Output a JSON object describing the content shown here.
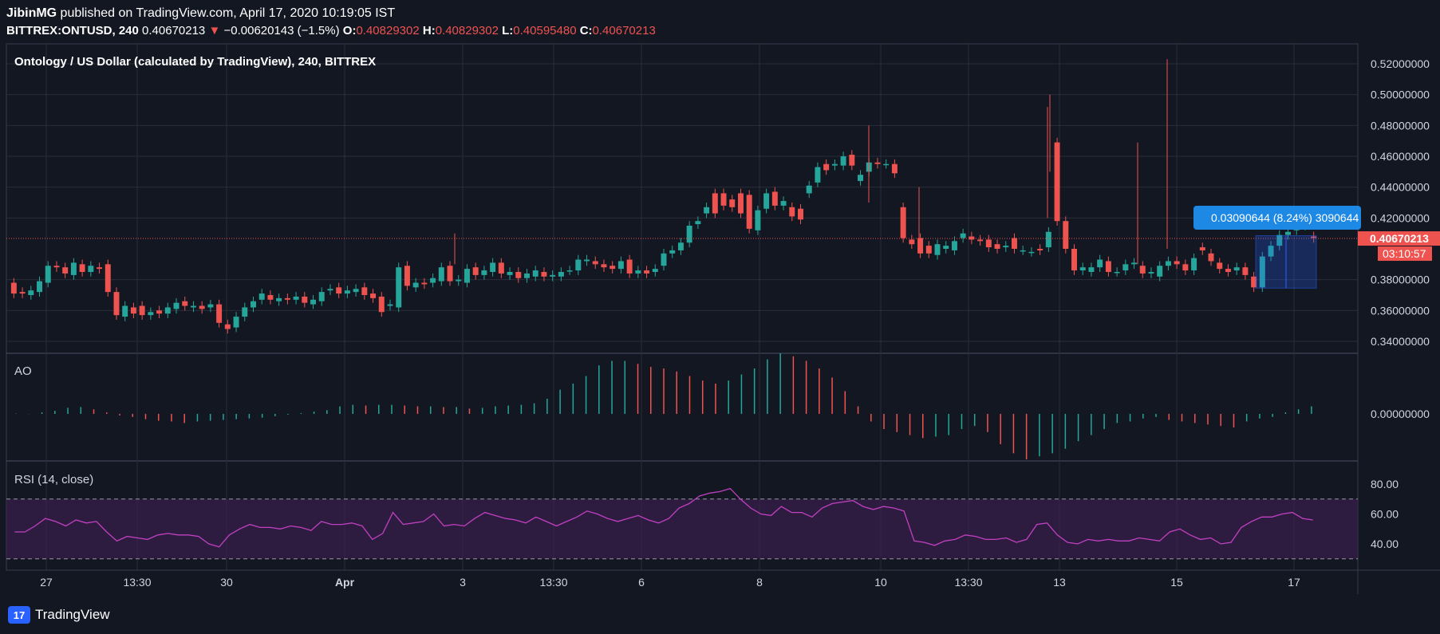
{
  "header": {
    "publisher": "JibinMG",
    "published_text": " published on TradingView.com, April 17, 2020 10:19:05 IST",
    "symbol": "BITTREX:ONTUSD, 240",
    "last": "0.40670213",
    "arrow": "▼",
    "change": "−0.00620143 (−1.5%)",
    "o_label": "O:",
    "o_val": "0.40829302",
    "h_label": "H:",
    "h_val": "0.40829302",
    "l_label": "L:",
    "l_val": "0.40595480",
    "c_label": "C:",
    "c_val": "0.40670213"
  },
  "footer": {
    "brand": "TradingView",
    "logo_glyph": "17"
  },
  "colors": {
    "bg": "#131722",
    "grid": "#363c4e",
    "up": "#26a69a",
    "down": "#ef5350",
    "rsi": "#c040c0",
    "rsi_band": "#3a1f4d",
    "blue": "#1e88e5"
  },
  "chart_data": {
    "type": "candlestick",
    "title": "Ontology / US Dollar (calculated by TradingView), 240, BITTREX",
    "price_axis": {
      "ylim": [
        0.33,
        0.53
      ],
      "ticks": [
        "0.52000000",
        "0.50000000",
        "0.48000000",
        "0.46000000",
        "0.44000000",
        "0.42000000",
        "0.38000000",
        "0.36000000",
        "0.34000000"
      ]
    },
    "x_ticks": [
      "27",
      "13:30",
      "30",
      "Apr",
      "3",
      "13:30",
      "6",
      "8",
      "10",
      "13:30",
      "13",
      "15",
      "17"
    ],
    "current_price_label": "0.40670213",
    "countdown_label": "03:10:57",
    "measure_label": "0.03090644 (8.24%) 3090644",
    "candles": [
      [
        0.378,
        0.371
      ],
      [
        0.372,
        0.371
      ],
      [
        0.37,
        0.373
      ],
      [
        0.372,
        0.379
      ],
      [
        0.378,
        0.389
      ],
      [
        0.389,
        0.388
      ],
      [
        0.388,
        0.384
      ],
      [
        0.383,
        0.391
      ],
      [
        0.39,
        0.385
      ],
      [
        0.385,
        0.389
      ],
      [
        0.388,
        0.387
      ],
      [
        0.39,
        0.372
      ],
      [
        0.372,
        0.357
      ],
      [
        0.356,
        0.363
      ],
      [
        0.362,
        0.358
      ],
      [
        0.363,
        0.357
      ],
      [
        0.357,
        0.359
      ],
      [
        0.36,
        0.358
      ],
      [
        0.358,
        0.362
      ],
      [
        0.361,
        0.365
      ],
      [
        0.366,
        0.363
      ],
      [
        0.362,
        0.363
      ],
      [
        0.363,
        0.361
      ],
      [
        0.362,
        0.364
      ],
      [
        0.364,
        0.352
      ],
      [
        0.351,
        0.348
      ],
      [
        0.349,
        0.356
      ],
      [
        0.356,
        0.362
      ],
      [
        0.362,
        0.366
      ],
      [
        0.367,
        0.371
      ],
      [
        0.37,
        0.367
      ],
      [
        0.366,
        0.368
      ],
      [
        0.368,
        0.367
      ],
      [
        0.367,
        0.369
      ],
      [
        0.369,
        0.365
      ],
      [
        0.364,
        0.367
      ],
      [
        0.366,
        0.372
      ],
      [
        0.373,
        0.374
      ],
      [
        0.375,
        0.371
      ],
      [
        0.371,
        0.373
      ],
      [
        0.372,
        0.374
      ],
      [
        0.375,
        0.37
      ],
      [
        0.371,
        0.368
      ],
      [
        0.369,
        0.359
      ],
      [
        0.363,
        0.364
      ],
      [
        0.362,
        0.388
      ],
      [
        0.389,
        0.376
      ],
      [
        0.375,
        0.378
      ],
      [
        0.378,
        0.377
      ],
      [
        0.378,
        0.381
      ],
      [
        0.379,
        0.388
      ],
      [
        0.389,
        0.379
      ],
      [
        0.379,
        0.38
      ],
      [
        0.378,
        0.387
      ],
      [
        0.388,
        0.383
      ],
      [
        0.383,
        0.386
      ],
      [
        0.385,
        0.391
      ],
      [
        0.391,
        0.384
      ],
      [
        0.383,
        0.385
      ],
      [
        0.385,
        0.381
      ],
      [
        0.381,
        0.384
      ],
      [
        0.382,
        0.386
      ],
      [
        0.385,
        0.382
      ],
      [
        0.382,
        0.383
      ],
      [
        0.382,
        0.385
      ],
      [
        0.386,
        0.386
      ],
      [
        0.386,
        0.393
      ],
      [
        0.392,
        0.393
      ],
      [
        0.392,
        0.39
      ],
      [
        0.39,
        0.388
      ],
      [
        0.389,
        0.387
      ],
      [
        0.387,
        0.392
      ],
      [
        0.393,
        0.384
      ],
      [
        0.384,
        0.386
      ],
      [
        0.386,
        0.384
      ],
      [
        0.385,
        0.387
      ],
      [
        0.389,
        0.397
      ],
      [
        0.397,
        0.399
      ],
      [
        0.399,
        0.404
      ],
      [
        0.404,
        0.415
      ],
      [
        0.416,
        0.418
      ],
      [
        0.423,
        0.427
      ],
      [
        0.436,
        0.423
      ],
      [
        0.436,
        0.428
      ],
      [
        0.432,
        0.427
      ],
      [
        0.436,
        0.423
      ],
      [
        0.435,
        0.413
      ],
      [
        0.412,
        0.425
      ],
      [
        0.426,
        0.436
      ],
      [
        0.437,
        0.428
      ],
      [
        0.428,
        0.431
      ],
      [
        0.427,
        0.421
      ],
      [
        0.426,
        0.419
      ],
      [
        0.436,
        0.441
      ],
      [
        0.443,
        0.453
      ],
      [
        0.455,
        0.451
      ],
      [
        0.454,
        0.455
      ],
      [
        0.454,
        0.46
      ],
      [
        0.461,
        0.454
      ],
      [
        0.444,
        0.448
      ],
      [
        0.45,
        0.456
      ],
      [
        0.456,
        0.455
      ],
      [
        0.455,
        0.455
      ],
      [
        0.455,
        0.449
      ],
      [
        0.427,
        0.407
      ],
      [
        0.406,
        0.403
      ],
      [
        0.407,
        0.397
      ],
      [
        0.402,
        0.397
      ],
      [
        0.396,
        0.403
      ],
      [
        0.4,
        0.402
      ],
      [
        0.399,
        0.405
      ],
      [
        0.407,
        0.41
      ],
      [
        0.408,
        0.406
      ],
      [
        0.406,
        0.405
      ],
      [
        0.406,
        0.401
      ],
      [
        0.403,
        0.4
      ],
      [
        0.401,
        0.402
      ],
      [
        0.407,
        0.4
      ],
      [
        0.399,
        0.399
      ],
      [
        0.398,
        0.398
      ],
      [
        0.4,
        0.399
      ],
      [
        0.401,
        0.411
      ],
      [
        0.469,
        0.418
      ],
      [
        0.418,
        0.4
      ],
      [
        0.4,
        0.386
      ],
      [
        0.386,
        0.388
      ],
      [
        0.385,
        0.388
      ],
      [
        0.388,
        0.393
      ],
      [
        0.392,
        0.385
      ],
      [
        0.385,
        0.385
      ],
      [
        0.386,
        0.39
      ],
      [
        0.39,
        0.391
      ],
      [
        0.389,
        0.384
      ],
      [
        0.384,
        0.385
      ],
      [
        0.382,
        0.389
      ],
      [
        0.389,
        0.392
      ],
      [
        0.392,
        0.39
      ],
      [
        0.39,
        0.386
      ],
      [
        0.386,
        0.394
      ],
      [
        0.401,
        0.399
      ],
      [
        0.397,
        0.392
      ],
      [
        0.391,
        0.387
      ],
      [
        0.387,
        0.385
      ],
      [
        0.386,
        0.388
      ],
      [
        0.388,
        0.383
      ],
      [
        0.382,
        0.375
      ],
      [
        0.375,
        0.395
      ],
      [
        0.395,
        0.402
      ],
      [
        0.402,
        0.409
      ],
      [
        0.409,
        0.411
      ],
      [
        0.412,
        0.415
      ],
      [
        0.415,
        0.415
      ],
      [
        0.408,
        0.407
      ]
    ],
    "ao": {
      "label": "AO",
      "tick": "0.00000000",
      "values": [
        0.002,
        -0.001,
        0.01,
        0.02,
        0.04,
        0.045,
        0.03,
        0.01,
        -0.01,
        -0.02,
        -0.035,
        -0.045,
        -0.05,
        -0.06,
        -0.05,
        -0.045,
        -0.04,
        -0.035,
        -0.03,
        -0.025,
        -0.015,
        -0.005,
        0.005,
        0.015,
        0.025,
        0.05,
        0.06,
        0.055,
        0.06,
        0.06,
        0.055,
        0.05,
        0.05,
        0.045,
        0.045,
        0.035,
        0.04,
        0.05,
        0.055,
        0.06,
        0.07,
        0.1,
        0.16,
        0.2,
        0.25,
        0.32,
        0.35,
        0.35,
        0.33,
        0.31,
        0.3,
        0.28,
        0.25,
        0.22,
        0.2,
        0.22,
        0.26,
        0.3,
        0.36,
        0.4,
        0.38,
        0.35,
        0.3,
        0.24,
        0.15,
        0.05,
        -0.05,
        -0.1,
        -0.12,
        -0.14,
        -0.16,
        -0.15,
        -0.14,
        -0.1,
        -0.08,
        -0.12,
        -0.2,
        -0.26,
        -0.3,
        -0.28,
        -0.26,
        -0.23,
        -0.18,
        -0.14,
        -0.1,
        -0.06,
        -0.05,
        -0.03,
        -0.02,
        -0.04,
        -0.05,
        -0.06,
        -0.07,
        -0.08,
        -0.09,
        -0.05,
        -0.03,
        -0.02,
        0.01,
        0.03,
        0.05
      ]
    },
    "rsi": {
      "label": "RSI (14, close)",
      "ticks": [
        "80.00",
        "60.00",
        "40.00"
      ],
      "values": [
        48,
        48,
        52,
        57,
        55,
        52,
        56,
        54,
        55,
        48,
        42,
        45,
        44,
        43,
        46,
        47,
        46,
        46,
        45,
        40,
        38,
        46,
        50,
        53,
        51,
        51,
        50,
        52,
        51,
        49,
        55,
        53,
        53,
        54,
        52,
        43,
        47,
        61,
        53,
        54,
        55,
        60,
        52,
        53,
        52,
        57,
        61,
        59,
        57,
        56,
        54,
        58,
        55,
        52,
        55,
        58,
        62,
        60,
        57,
        55,
        57,
        59,
        56,
        54,
        57,
        64,
        67,
        72,
        74,
        75,
        77,
        70,
        64,
        60,
        59,
        65,
        61,
        61,
        58,
        64,
        67,
        68,
        69,
        65,
        63,
        65,
        64,
        62,
        42,
        41,
        39,
        42,
        43,
        46,
        45,
        43,
        43,
        44,
        41,
        43,
        53,
        54,
        46,
        41,
        40,
        43,
        42,
        43,
        42,
        42,
        44,
        43,
        42,
        48,
        50,
        46,
        43,
        44,
        40,
        41,
        51,
        55,
        58,
        58,
        60,
        61,
        57,
        56
      ]
    }
  }
}
